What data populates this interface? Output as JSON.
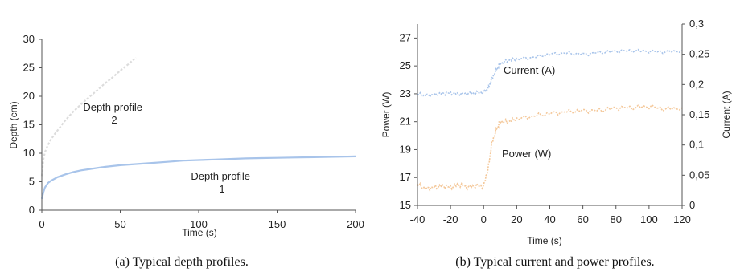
{
  "chart_data": [
    {
      "type": "line",
      "caption": "(a) Typical depth profiles.",
      "xlabel": "Time (s)",
      "ylabel": "Depth (cm)",
      "xlim": [
        0,
        200
      ],
      "ylim": [
        0,
        30
      ],
      "xticks": [
        "0",
        "50",
        "100",
        "150",
        "200"
      ],
      "yticks": [
        "0",
        "5",
        "10",
        "15",
        "20",
        "25",
        "30"
      ],
      "grid": false,
      "series": [
        {
          "color": "#a8c4ea",
          "x": [
            0,
            1,
            2,
            4,
            6,
            8,
            10,
            15,
            20,
            25,
            30,
            40,
            50,
            60,
            70,
            80,
            90,
            100,
            110,
            120,
            130,
            140,
            150,
            160,
            170,
            180,
            190,
            200
          ],
          "y": [
            2.0,
            3.2,
            4.0,
            4.8,
            5.2,
            5.5,
            5.8,
            6.3,
            6.7,
            7.0,
            7.2,
            7.6,
            7.9,
            8.1,
            8.3,
            8.5,
            8.7,
            8.8,
            8.9,
            9.0,
            9.1,
            9.15,
            9.2,
            9.25,
            9.3,
            9.35,
            9.4,
            9.45
          ]
        },
        {
          "color": "#dcdcdc",
          "x": [
            0,
            1,
            2,
            4,
            6,
            8,
            10,
            15,
            20,
            25,
            30,
            35,
            40,
            45,
            50,
            55,
            60
          ],
          "y": [
            6.0,
            9.0,
            10.2,
            11.5,
            12.5,
            13.3,
            14.0,
            15.8,
            17.3,
            18.6,
            19.8,
            21.0,
            22.2,
            23.3,
            24.5,
            25.6,
            26.8
          ]
        }
      ],
      "annotations": [
        {
          "line1": "Depth profile",
          "line2": "2"
        },
        {
          "line1": "Depth profile",
          "line2": "1"
        }
      ]
    },
    {
      "type": "line",
      "caption": "(b) Typical current and power profiles.",
      "xlabel": "Time (s)",
      "ylabel": "Power (W)",
      "y2label": "Current (A)",
      "xlim": [
        -40,
        120
      ],
      "ylim": [
        15,
        28
      ],
      "y2lim": [
        0,
        0.3
      ],
      "xticks": [
        "-40",
        "-20",
        "0",
        "20",
        "40",
        "60",
        "80",
        "100",
        "120"
      ],
      "yticks": [
        "15",
        "17",
        "19",
        "21",
        "23",
        "25",
        "27"
      ],
      "y2ticks": [
        "0",
        "0,05",
        "0,1",
        "0,15",
        "0,2",
        "0,25",
        "0,3"
      ],
      "grid": false,
      "series": [
        {
          "name": "Current (A)",
          "axis": "right",
          "color": "#a8c4ea",
          "x": [
            -40,
            -35,
            -30,
            -25,
            -20,
            -15,
            -10,
            -5,
            0,
            3,
            5,
            8,
            10,
            15,
            20,
            30,
            40,
            50,
            60,
            70,
            80,
            90,
            100,
            110,
            120
          ],
          "y": [
            0.184,
            0.182,
            0.183,
            0.185,
            0.186,
            0.184,
            0.185,
            0.186,
            0.187,
            0.195,
            0.21,
            0.225,
            0.235,
            0.24,
            0.242,
            0.245,
            0.25,
            0.252,
            0.25,
            0.253,
            0.255,
            0.256,
            0.255,
            0.254,
            0.256
          ]
        },
        {
          "name": "Power (W)",
          "axis": "left",
          "color": "#f4c89a",
          "x": [
            -40,
            -35,
            -30,
            -25,
            -20,
            -15,
            -10,
            -5,
            0,
            3,
            5,
            8,
            10,
            15,
            20,
            30,
            40,
            50,
            60,
            70,
            80,
            90,
            100,
            110,
            120
          ],
          "y": [
            16.5,
            16.2,
            16.3,
            16.4,
            16.3,
            16.5,
            16.3,
            16.4,
            16.4,
            17.8,
            19.5,
            20.5,
            21.0,
            21.0,
            21.2,
            21.4,
            21.6,
            21.7,
            21.8,
            21.8,
            22.0,
            22.0,
            22.1,
            21.9,
            22.0
          ]
        }
      ]
    }
  ]
}
